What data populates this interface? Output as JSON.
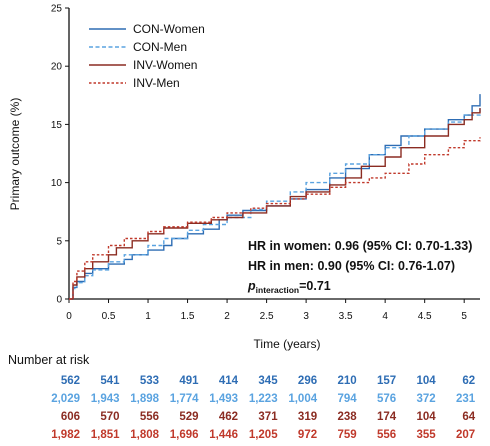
{
  "chart_data": {
    "type": "line",
    "xlabel": "Time (years)",
    "ylabel": "Primary outcome (%)",
    "xlim": [
      0,
      5.2
    ],
    "ylim": [
      0,
      25
    ],
    "x_ticks": [
      "0",
      "0.5",
      "1",
      "1.5",
      "2",
      "2.5",
      "3",
      "3.5",
      "4",
      "4.5",
      "5"
    ],
    "y_ticks": [
      "0",
      "5",
      "10",
      "15",
      "20",
      "25"
    ],
    "grid": false,
    "legend_position": "top-left",
    "series": [
      {
        "name": "CON-Women",
        "color": "#2e6db4",
        "dash": "solid",
        "points": [
          [
            0,
            0
          ],
          [
            0.05,
            1.0
          ],
          [
            0.1,
            1.5
          ],
          [
            0.2,
            2.2
          ],
          [
            0.3,
            2.6
          ],
          [
            0.5,
            3.0
          ],
          [
            0.7,
            3.4
          ],
          [
            0.8,
            3.8
          ],
          [
            1.0,
            4.2
          ],
          [
            1.2,
            4.6
          ],
          [
            1.3,
            5.2
          ],
          [
            1.5,
            5.6
          ],
          [
            1.7,
            6.0
          ],
          [
            1.9,
            6.8
          ],
          [
            2.0,
            7.2
          ],
          [
            2.2,
            7.6
          ],
          [
            2.5,
            8.0
          ],
          [
            2.8,
            8.6
          ],
          [
            3.0,
            9.4
          ],
          [
            3.3,
            10.4
          ],
          [
            3.5,
            11.2
          ],
          [
            3.8,
            12.4
          ],
          [
            4.0,
            13.2
          ],
          [
            4.2,
            14.0
          ],
          [
            4.5,
            14.6
          ],
          [
            4.8,
            15.4
          ],
          [
            5.0,
            15.8
          ],
          [
            5.1,
            16.6
          ],
          [
            5.2,
            17.6
          ]
        ]
      },
      {
        "name": "CON-Men",
        "color": "#5aa3e0",
        "dash": "dashed",
        "points": [
          [
            0,
            0
          ],
          [
            0.05,
            0.9
          ],
          [
            0.1,
            1.4
          ],
          [
            0.2,
            2.0
          ],
          [
            0.3,
            2.5
          ],
          [
            0.5,
            3.2
          ],
          [
            0.7,
            3.8
          ],
          [
            1.0,
            4.6
          ],
          [
            1.2,
            5.2
          ],
          [
            1.5,
            5.9
          ],
          [
            1.7,
            6.4
          ],
          [
            2.0,
            7.0
          ],
          [
            2.3,
            7.7
          ],
          [
            2.5,
            8.4
          ],
          [
            2.8,
            9.2
          ],
          [
            3.0,
            10.0
          ],
          [
            3.3,
            10.8
          ],
          [
            3.5,
            11.6
          ],
          [
            3.8,
            12.4
          ],
          [
            4.0,
            13.0
          ],
          [
            4.3,
            14.0
          ],
          [
            4.5,
            14.6
          ],
          [
            4.8,
            15.2
          ],
          [
            5.0,
            15.8
          ],
          [
            5.2,
            16.4
          ]
        ]
      },
      {
        "name": "INV-Women",
        "color": "#8b2c22",
        "dash": "solid",
        "points": [
          [
            0,
            0
          ],
          [
            0.05,
            1.2
          ],
          [
            0.1,
            1.9
          ],
          [
            0.2,
            2.6
          ],
          [
            0.3,
            3.2
          ],
          [
            0.5,
            3.8
          ],
          [
            0.6,
            4.4
          ],
          [
            0.8,
            5.0
          ],
          [
            1.0,
            5.6
          ],
          [
            1.2,
            6.1
          ],
          [
            1.5,
            6.5
          ],
          [
            1.8,
            6.8
          ],
          [
            2.0,
            7.0
          ],
          [
            2.2,
            7.4
          ],
          [
            2.5,
            8.0
          ],
          [
            2.8,
            8.8
          ],
          [
            3.0,
            9.2
          ],
          [
            3.3,
            9.8
          ],
          [
            3.5,
            10.4
          ],
          [
            3.7,
            11.4
          ],
          [
            4.0,
            12.2
          ],
          [
            4.2,
            13.0
          ],
          [
            4.5,
            14.0
          ],
          [
            4.8,
            15.0
          ],
          [
            5.0,
            15.4
          ],
          [
            5.1,
            16.0
          ],
          [
            5.2,
            16.4
          ]
        ]
      },
      {
        "name": "INV-Men",
        "color": "#c0392b",
        "dash": "dotted",
        "points": [
          [
            0,
            0
          ],
          [
            0.05,
            1.5
          ],
          [
            0.1,
            2.4
          ],
          [
            0.2,
            3.2
          ],
          [
            0.3,
            3.8
          ],
          [
            0.5,
            4.6
          ],
          [
            0.7,
            5.2
          ],
          [
            1.0,
            5.8
          ],
          [
            1.2,
            6.2
          ],
          [
            1.5,
            6.6
          ],
          [
            1.8,
            7.0
          ],
          [
            2.0,
            7.4
          ],
          [
            2.3,
            7.8
          ],
          [
            2.5,
            8.2
          ],
          [
            2.8,
            8.6
          ],
          [
            3.0,
            9.0
          ],
          [
            3.3,
            9.6
          ],
          [
            3.5,
            10.0
          ],
          [
            3.8,
            10.4
          ],
          [
            4.0,
            10.8
          ],
          [
            4.3,
            11.6
          ],
          [
            4.5,
            12.4
          ],
          [
            4.8,
            13.0
          ],
          [
            5.0,
            13.6
          ],
          [
            5.2,
            13.9
          ]
        ]
      }
    ]
  },
  "annotations": {
    "hr_women": "HR in women: 0.96 (95% CI: 0.70-1.33)",
    "hr_men": "HR in men: 0.90 (95% CI: 0.76-1.07)",
    "p_symbol": "p",
    "p_subscript": "interaction",
    "p_value": "=0.71"
  },
  "risk_table": {
    "title": "Number at risk",
    "rows": [
      {
        "color": "#2e6db4",
        "values": [
          "562",
          "541",
          "533",
          "491",
          "414",
          "345",
          "296",
          "210",
          "157",
          "104",
          "62"
        ]
      },
      {
        "color": "#5aa3e0",
        "values": [
          "2,029",
          "1,943",
          "1,898",
          "1,774",
          "1,493",
          "1,223",
          "1,004",
          "794",
          "576",
          "372",
          "231"
        ]
      },
      {
        "color": "#8b2c22",
        "values": [
          "606",
          "570",
          "556",
          "529",
          "462",
          "371",
          "319",
          "238",
          "174",
          "104",
          "64"
        ]
      },
      {
        "color": "#c0392b",
        "values": [
          "1,982",
          "1,851",
          "1,808",
          "1,696",
          "1,446",
          "1,205",
          "972",
          "759",
          "556",
          "355",
          "207"
        ]
      }
    ]
  }
}
